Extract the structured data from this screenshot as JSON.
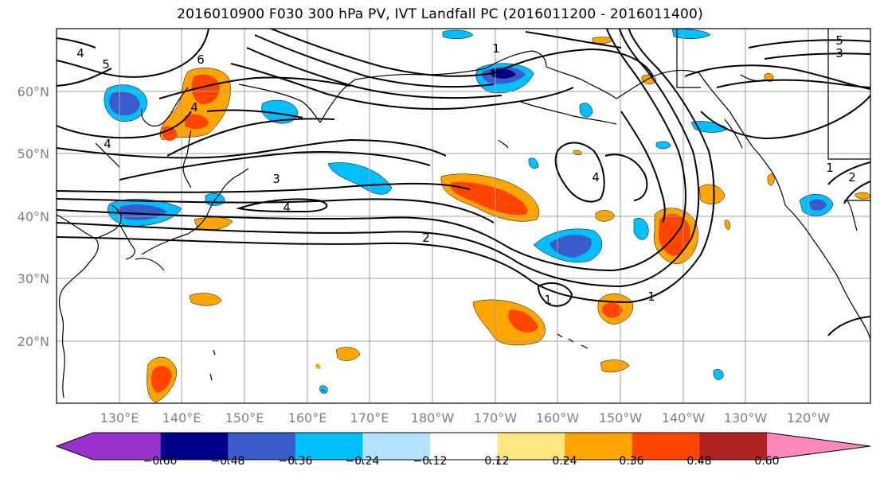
{
  "title": "2016010900 F030 300 hPa PV, IVT Landfall PC (2016011200 - 2016011400)",
  "latitude_labels": [
    "60°N",
    "50°N",
    "40°N",
    "30°N",
    "20°N"
  ],
  "longitude_labels": [
    "130°E",
    "140°E",
    "150°E",
    "160°E",
    "170°E",
    "180°W",
    "170°W",
    "160°W",
    "150°W",
    "140°W",
    "130°W",
    "120°W"
  ],
  "pv_contour_labels": [
    "1",
    "1",
    "1",
    "1",
    "2",
    "2",
    "3",
    "3",
    "4",
    "4",
    "4",
    "4",
    "4",
    "5",
    "5",
    "6"
  ],
  "colorbar": {
    "tick_labels": [
      "−0.60",
      "−0.48",
      "−0.36",
      "−0.24",
      "−0.12",
      "0.12",
      "0.24",
      "0.36",
      "0.48",
      "0.60"
    ],
    "colors": [
      "#9932cc",
      "#00008b",
      "#3a5bcc",
      "#00bfff",
      "#b3e3fd",
      "#ffffff",
      "#ffe680",
      "#ffa500",
      "#ff4500",
      "#b22222",
      "#ff88bb"
    ]
  },
  "colors": {
    "contour": "#000000",
    "grid": "#a0a0a0",
    "coast": "#000000"
  }
}
